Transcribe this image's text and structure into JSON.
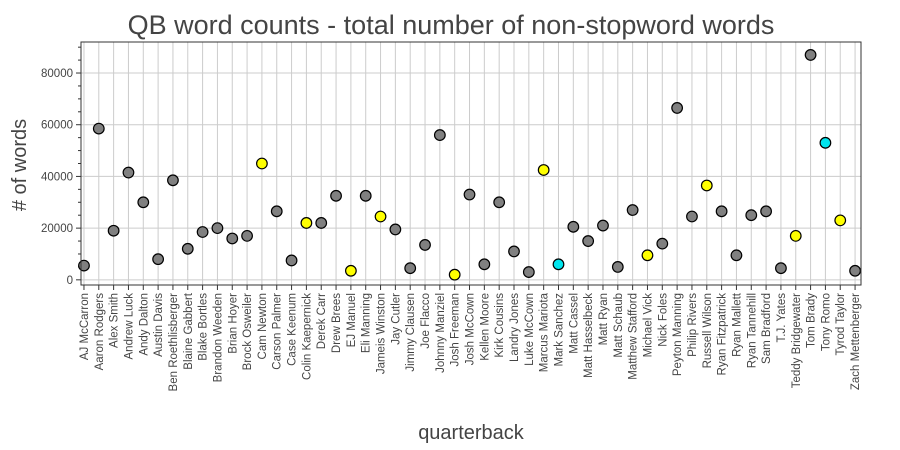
{
  "chart_data": {
    "type": "scatter",
    "title": "QB word counts - total number of non-stopword words",
    "xlabel": "quarterback",
    "ylabel": "# of words",
    "ylim": [
      -2000,
      92000
    ],
    "yticks": [
      0,
      20000,
      40000,
      60000,
      80000
    ],
    "grid": true,
    "colors": {
      "default": "#808080",
      "yellow": "#ffff00",
      "cyan": "#00e5ee",
      "outline": "#000000",
      "text": "#444444"
    },
    "categories": [
      "AJ McCarron",
      "Aaron Rodgers",
      "Alex Smith",
      "Andrew Luck",
      "Andy Dalton",
      "Austin Davis",
      "Ben Roethlisberger",
      "Blaine Gabbert",
      "Blake Bortles",
      "Brandon Weeden",
      "Brian Hoyer",
      "Brock Osweiler",
      "Cam Newton",
      "Carson Palmer",
      "Case Keenum",
      "Colin Kaepernick",
      "Derek Carr",
      "Drew Brees",
      "EJ Manuel",
      "Eli Manning",
      "Jameis Winston",
      "Jay Cutler",
      "Jimmy Clausen",
      "Joe Flacco",
      "Johnny Manziel",
      "Josh Freeman",
      "Josh McCown",
      "Kellen Moore",
      "Kirk Cousins",
      "Landry Jones",
      "Luke McCown",
      "Marcus Mariota",
      "Mark Sanchez",
      "Matt Cassel",
      "Matt Hasselbeck",
      "Matt Ryan",
      "Matt Schaub",
      "Matthew Stafford",
      "Michael Vick",
      "Nick Foles",
      "Peyton Manning",
      "Philip Rivers",
      "Russell Wilson",
      "Ryan Fitzpatrick",
      "Ryan Mallett",
      "Ryan Tannehill",
      "Sam Bradford",
      "T.J. Yates",
      "Teddy Bridgewater",
      "Tom Brady",
      "Tony Romo",
      "Tyrod Taylor",
      "Zach Mettenberger"
    ],
    "values": [
      5500,
      58500,
      19000,
      41500,
      30000,
      8000,
      38500,
      12000,
      18500,
      20000,
      16000,
      17000,
      45000,
      26500,
      7500,
      22000,
      22000,
      32500,
      3500,
      32500,
      24500,
      19500,
      4500,
      13500,
      56000,
      2000,
      33000,
      6000,
      30000,
      11000,
      3000,
      42500,
      6000,
      20500,
      15000,
      21000,
      5000,
      27000,
      9500,
      14000,
      66500,
      24500,
      36500,
      26500,
      9500,
      25000,
      26500,
      4500,
      17000,
      87000,
      53000,
      23000,
      3500
    ],
    "point_colors": [
      "default",
      "default",
      "default",
      "default",
      "default",
      "default",
      "default",
      "default",
      "default",
      "default",
      "default",
      "default",
      "yellow",
      "default",
      "default",
      "yellow",
      "default",
      "default",
      "yellow",
      "default",
      "yellow",
      "default",
      "default",
      "default",
      "default",
      "yellow",
      "default",
      "default",
      "default",
      "default",
      "default",
      "yellow",
      "cyan",
      "default",
      "default",
      "default",
      "default",
      "default",
      "yellow",
      "default",
      "default",
      "default",
      "yellow",
      "default",
      "default",
      "default",
      "default",
      "default",
      "yellow",
      "default",
      "cyan",
      "yellow",
      "default"
    ]
  }
}
